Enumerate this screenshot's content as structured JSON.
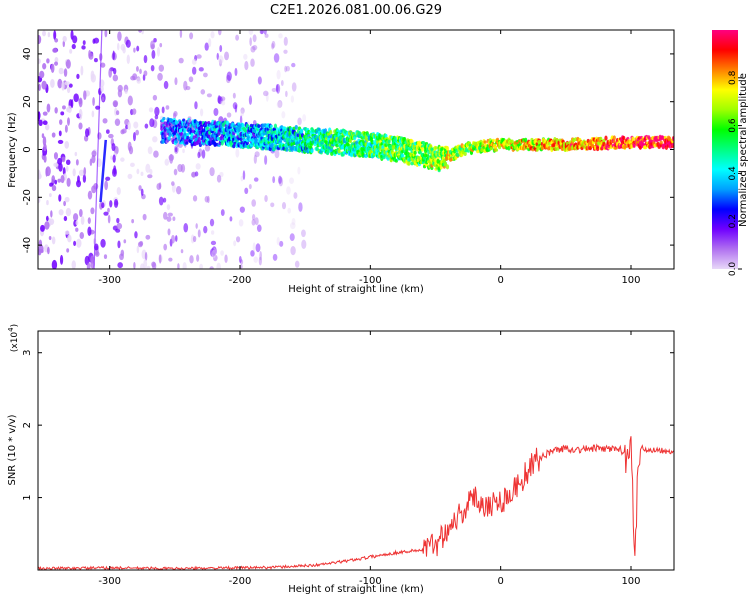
{
  "page_title": "C2E1.2026.081.00.06.G29",
  "chart_data": [
    {
      "type": "heatmap",
      "title": "C2E1.2026.081.00.06.G29",
      "xlabel": "Height of straight line (km)",
      "ylabel": "Frequency (Hz)",
      "xlim": [
        -355,
        133
      ],
      "ylim": [
        -50,
        50
      ],
      "x_ticks": [
        -300,
        -200,
        -100,
        0,
        100
      ],
      "y_ticks": [
        -40,
        -20,
        0,
        20,
        40
      ],
      "grid": false,
      "colorbar": {
        "label": "Normalized spectral amplitude",
        "range": [
          0,
          1
        ],
        "ticks": [
          "0.0",
          "0.2",
          "0.4",
          "0.6",
          "0.8"
        ],
        "colors": [
          "#e8d8f8",
          "#b070f0",
          "#7000ff",
          "#0000ff",
          "#00a0ff",
          "#00ffff",
          "#00ff80",
          "#00ff00",
          "#a0ff00",
          "#ffff00",
          "#ff8000",
          "#ff0000",
          "#ff0080"
        ]
      },
      "signal_track": {
        "x": [
          -260,
          -200,
          -150,
          -100,
          -80,
          -60,
          -50,
          -40,
          -30,
          -20,
          0,
          50,
          100,
          133
        ],
        "y": [
          8,
          6,
          4,
          2,
          0,
          -2,
          -4,
          -3,
          0,
          1,
          2,
          2,
          3,
          3
        ]
      },
      "noise_region_x": [
        -355,
        -150
      ]
    },
    {
      "type": "line",
      "xlabel": "Height of straight line (km)",
      "ylabel": "SNR (10 * v/v)",
      "y_multiplier": "(x10",
      "y_multiplier_exp": "4",
      "y_multiplier_close": ")",
      "xlim": [
        -355,
        133
      ],
      "ylim": [
        0,
        3.3
      ],
      "x_ticks": [
        -300,
        -200,
        -100,
        0,
        100
      ],
      "y_ticks": [
        1,
        2,
        3
      ],
      "grid": false,
      "series": [
        {
          "color": "#ee3333",
          "x": [
            -355,
            -300,
            -250,
            -200,
            -170,
            -140,
            -120,
            -100,
            -80,
            -60,
            -50,
            -40,
            -30,
            -20,
            -10,
            0,
            10,
            20,
            30,
            40,
            50,
            60,
            70,
            80,
            90,
            96,
            100,
            103,
            106,
            110,
            120,
            133
          ],
          "y": [
            0.02,
            0.03,
            0.02,
            0.03,
            0.04,
            0.07,
            0.12,
            0.18,
            0.24,
            0.28,
            0.35,
            0.6,
            0.8,
            1.0,
            0.9,
            0.95,
            1.1,
            1.35,
            1.55,
            1.65,
            1.68,
            1.66,
            1.68,
            1.67,
            1.68,
            1.6,
            1.9,
            0.1,
            1.67,
            1.67,
            1.66,
            1.65
          ]
        }
      ]
    }
  ]
}
